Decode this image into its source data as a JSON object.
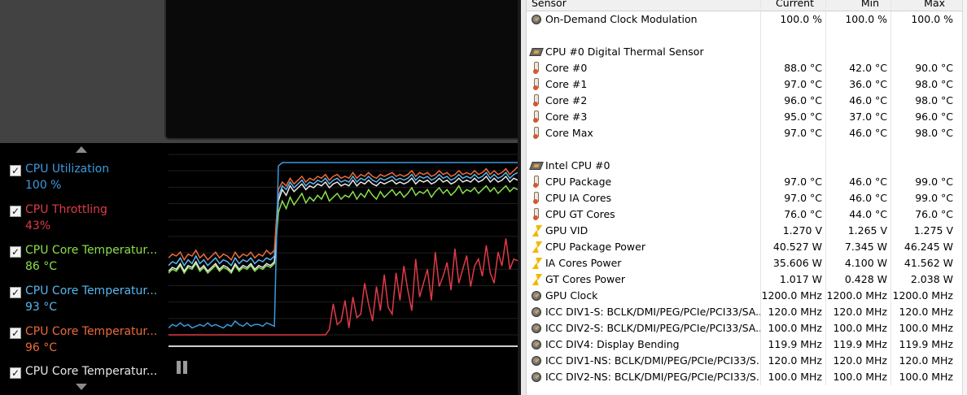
{
  "legend": [
    {
      "name": "CPU Utilization",
      "value": "100 %",
      "color": "#3c9ade"
    },
    {
      "name": "CPU Throttling",
      "value": "43%",
      "color": "#e03a46"
    },
    {
      "name": "CPU Core Temperatur...",
      "value": "86 °C",
      "color": "#8ae04a"
    },
    {
      "name": "CPU Core Temperatur...",
      "value": "93 °C",
      "color": "#58b6ee"
    },
    {
      "name": "CPU Core Temperatur...",
      "value": "96 °C",
      "color": "#ee6a3a"
    },
    {
      "name": "CPU Core Temperatur...",
      "value": "",
      "color": "#e8e8e8"
    }
  ],
  "checkbox_glyph": "✓",
  "table": {
    "header": {
      "sensor": "Sensor",
      "current": "Current",
      "min": "Min",
      "max": "Max"
    },
    "rows": [
      {
        "type": "data",
        "icon": "gauge-icon",
        "name": "On-Demand Clock Modulation",
        "current": "100.0 %",
        "min": "100.0 %",
        "max": "100.0 %"
      },
      {
        "type": "blank"
      },
      {
        "type": "group",
        "icon": "chip-icon",
        "name": "CPU #0 Digital Thermal Sensor"
      },
      {
        "type": "data",
        "icon": "thermometer-icon",
        "name": "Core #0",
        "current": "88.0 °C",
        "min": "42.0 °C",
        "max": "90.0 °C"
      },
      {
        "type": "data",
        "icon": "thermometer-icon",
        "name": "Core #1",
        "current": "97.0 °C",
        "min": "36.0 °C",
        "max": "98.0 °C"
      },
      {
        "type": "data",
        "icon": "thermometer-icon",
        "name": "Core #2",
        "current": "96.0 °C",
        "min": "46.0 °C",
        "max": "98.0 °C"
      },
      {
        "type": "data",
        "icon": "thermometer-icon",
        "name": "Core #3",
        "current": "95.0 °C",
        "min": "37.0 °C",
        "max": "96.0 °C"
      },
      {
        "type": "data",
        "icon": "thermometer-icon",
        "name": "Core Max",
        "current": "97.0 °C",
        "min": "46.0 °C",
        "max": "98.0 °C"
      },
      {
        "type": "blank"
      },
      {
        "type": "group",
        "icon": "chip-icon",
        "name": "Intel CPU #0"
      },
      {
        "type": "data",
        "icon": "thermometer-icon",
        "name": "CPU Package",
        "current": "97.0 °C",
        "min": "46.0 °C",
        "max": "99.0 °C"
      },
      {
        "type": "data",
        "icon": "thermometer-icon",
        "name": "CPU IA Cores",
        "current": "97.0 °C",
        "min": "46.0 °C",
        "max": "99.0 °C"
      },
      {
        "type": "data",
        "icon": "thermometer-icon",
        "name": "CPU GT Cores",
        "current": "76.0 °C",
        "min": "44.0 °C",
        "max": "76.0 °C"
      },
      {
        "type": "data",
        "icon": "bolt-icon",
        "name": "GPU VID",
        "current": "1.270 V",
        "min": "1.265 V",
        "max": "1.275 V"
      },
      {
        "type": "data",
        "icon": "bolt-icon",
        "name": "CPU Package Power",
        "current": "40.527 W",
        "min": "7.345 W",
        "max": "46.245 W"
      },
      {
        "type": "data",
        "icon": "bolt-icon",
        "name": "IA Cores Power",
        "current": "35.606 W",
        "min": "4.100 W",
        "max": "41.562 W"
      },
      {
        "type": "data",
        "icon": "bolt-icon",
        "name": "GT Cores Power",
        "current": "1.017 W",
        "min": "0.428 W",
        "max": "2.038 W"
      },
      {
        "type": "data",
        "icon": "gauge-icon",
        "name": "GPU Clock",
        "current": "1200.0 MHz",
        "min": "1200.0 MHz",
        "max": "1200.0 MHz"
      },
      {
        "type": "data",
        "icon": "gauge-icon",
        "name": "ICC DIV1-S: BCLK/DMI/PEG/PCIe/PCI33/SA...",
        "current": "120.0 MHz",
        "min": "120.0 MHz",
        "max": "120.0 MHz"
      },
      {
        "type": "data",
        "icon": "gauge-icon",
        "name": "ICC DIV2-S: BCLK/DMI/PEG/PCIe/PCI33/SA...",
        "current": "100.0 MHz",
        "min": "100.0 MHz",
        "max": "100.0 MHz"
      },
      {
        "type": "data",
        "icon": "gauge-icon",
        "name": "ICC DIV4: Display Bending",
        "current": "119.9 MHz",
        "min": "119.9 MHz",
        "max": "119.9 MHz"
      },
      {
        "type": "data",
        "icon": "gauge-icon",
        "name": "ICC DIV1-NS: BCLK/DMI/PEG/PCIe/PCI33/S...",
        "current": "120.0 MHz",
        "min": "120.0 MHz",
        "max": "120.0 MHz"
      },
      {
        "type": "data",
        "icon": "gauge-icon",
        "name": "ICC DIV2-NS: BCLK/DMI/PEG/PCIe/PCI33/S...",
        "current": "100.0 MHz",
        "min": "100.0 MHz",
        "max": "100.0 MHz"
      }
    ]
  },
  "graph_series": {
    "utilization": [
      4,
      6,
      5,
      7,
      5,
      6,
      4,
      5,
      6,
      5,
      7,
      5,
      6,
      5,
      4,
      6,
      5,
      8,
      6,
      5,
      7,
      5,
      6,
      6,
      5,
      7,
      6,
      5,
      98,
      100,
      100,
      100,
      100,
      100,
      100,
      100,
      100,
      100,
      100,
      100,
      100,
      100,
      100,
      100,
      100,
      100,
      100,
      100,
      100,
      100,
      100,
      100,
      100,
      100,
      100,
      100,
      100,
      100,
      100,
      100,
      100,
      100,
      100,
      100,
      100,
      100,
      100,
      100,
      100,
      100,
      100,
      100,
      100,
      100,
      100,
      100,
      100,
      100,
      100,
      100,
      100,
      100,
      100,
      100,
      100,
      100,
      100,
      100,
      100,
      100
    ],
    "throttling": [
      0,
      0,
      0,
      0,
      0,
      0,
      0,
      0,
      0,
      0,
      0,
      0,
      0,
      0,
      0,
      0,
      0,
      0,
      0,
      0,
      0,
      0,
      0,
      0,
      0,
      0,
      0,
      0,
      0,
      0,
      0,
      0,
      0,
      0,
      0,
      0,
      0,
      0,
      0,
      0,
      0,
      3,
      18,
      6,
      8,
      20,
      4,
      22,
      10,
      12,
      30,
      18,
      8,
      28,
      14,
      35,
      16,
      12,
      36,
      20,
      40,
      26,
      14,
      44,
      22,
      30,
      38,
      20,
      48,
      28,
      34,
      42,
      26,
      50,
      30,
      38,
      46,
      28,
      40,
      44,
      34,
      52,
      36,
      30,
      48,
      40,
      56,
      38,
      44,
      43
    ],
    "temp_green": [
      40,
      42,
      41,
      44,
      40,
      43,
      42,
      45,
      41,
      43,
      40,
      42,
      44,
      41,
      43,
      42,
      40,
      44,
      41,
      43,
      42,
      44,
      41,
      43,
      42,
      44,
      43,
      45,
      72,
      78,
      74,
      80,
      76,
      79,
      82,
      77,
      80,
      78,
      81,
      79,
      83,
      78,
      80,
      82,
      79,
      81,
      80,
      83,
      79,
      82,
      80,
      84,
      81,
      79,
      83,
      80,
      82,
      84,
      81,
      83,
      80,
      82,
      85,
      81,
      83,
      82,
      84,
      80,
      83,
      85,
      82,
      84,
      81,
      83,
      86,
      82,
      84,
      83,
      85,
      82,
      84,
      86,
      83,
      85,
      82,
      84,
      86,
      83,
      85,
      84
    ],
    "temp_blue": [
      44,
      46,
      45,
      48,
      44,
      47,
      45,
      49,
      45,
      47,
      44,
      46,
      48,
      45,
      47,
      46,
      44,
      48,
      45,
      47,
      46,
      48,
      45,
      47,
      46,
      48,
      47,
      49,
      80,
      86,
      84,
      88,
      85,
      87,
      89,
      86,
      88,
      87,
      89,
      88,
      90,
      87,
      89,
      90,
      88,
      89,
      88,
      91,
      88,
      90,
      89,
      91,
      89,
      88,
      90,
      89,
      90,
      91,
      89,
      90,
      89,
      90,
      92,
      89,
      91,
      90,
      91,
      89,
      90,
      92,
      90,
      91,
      89,
      90,
      92,
      90,
      91,
      90,
      92,
      90,
      91,
      93,
      90,
      92,
      90,
      91,
      93,
      90,
      92,
      93
    ],
    "temp_orange": [
      48,
      50,
      49,
      51,
      47,
      50,
      49,
      52,
      48,
      50,
      47,
      49,
      51,
      48,
      50,
      49,
      47,
      51,
      48,
      50,
      49,
      51,
      48,
      50,
      49,
      52,
      50,
      52,
      84,
      88,
      86,
      90,
      87,
      89,
      91,
      88,
      90,
      89,
      91,
      90,
      92,
      89,
      91,
      92,
      90,
      91,
      90,
      93,
      90,
      92,
      91,
      93,
      91,
      90,
      92,
      91,
      92,
      93,
      91,
      92,
      91,
      92,
      94,
      91,
      93,
      92,
      93,
      91,
      92,
      94,
      92,
      93,
      91,
      92,
      94,
      92,
      93,
      92,
      94,
      92,
      93,
      95,
      92,
      94,
      92,
      93,
      95,
      92,
      94,
      96
    ],
    "temp_white": [
      41,
      43,
      42,
      45,
      41,
      44,
      43,
      46,
      42,
      44,
      41,
      43,
      45,
      42,
      44,
      43,
      41,
      45,
      42,
      44,
      43,
      45,
      42,
      44,
      43,
      45,
      44,
      46,
      78,
      84,
      81,
      86,
      83,
      85,
      87,
      84,
      86,
      85,
      87,
      86,
      88,
      85,
      87,
      88,
      86,
      87,
      86,
      89,
      86,
      88,
      87,
      89,
      87,
      86,
      88,
      87,
      88,
      89,
      87,
      88,
      87,
      88,
      90,
      87,
      89,
      88,
      89,
      87,
      88,
      90,
      88,
      89,
      87,
      88,
      90,
      88,
      89,
      88,
      90,
      88,
      89,
      91,
      88,
      90,
      88,
      89,
      91,
      88,
      90,
      89
    ]
  }
}
